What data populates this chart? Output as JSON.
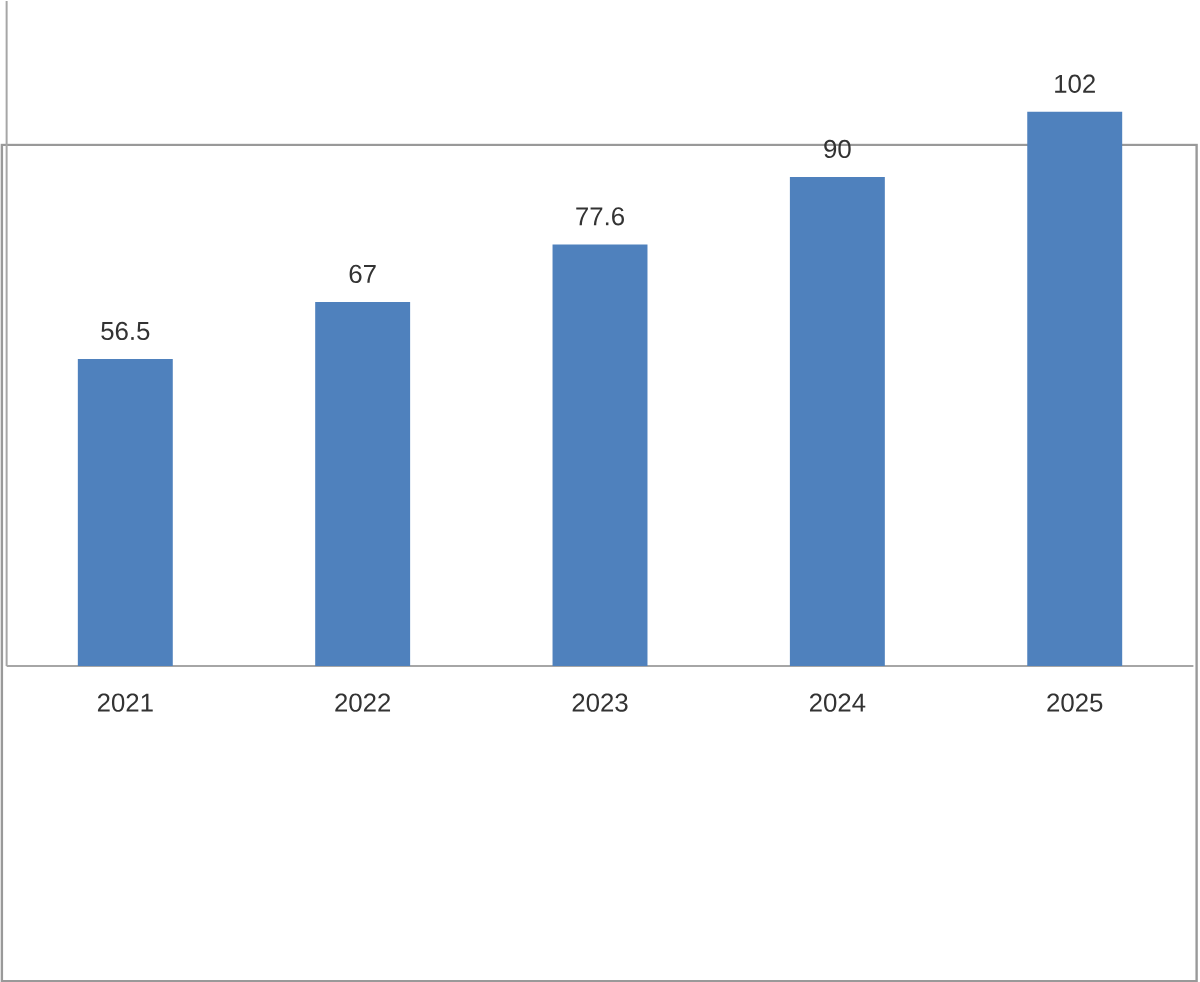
{
  "chart_data": {
    "type": "bar",
    "categories": [
      "2021",
      "2022",
      "2023",
      "2024",
      "2025"
    ],
    "values": [
      56.5,
      67,
      77.6,
      90,
      102
    ],
    "color": "#4f81bd",
    "data_labels": true
  }
}
